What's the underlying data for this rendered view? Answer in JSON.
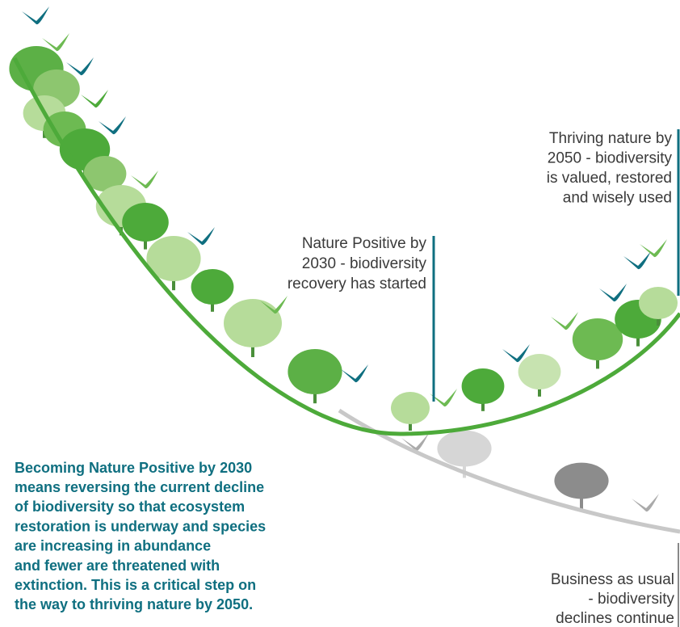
{
  "annotations": [
    {
      "lines": [
        "Thriving nature by",
        "2050 - biodiversity",
        "is valued, restored",
        "and wisely used"
      ]
    },
    {
      "lines": [
        "Nature Positive by",
        "2030 - biodiversity",
        "recovery has started"
      ]
    },
    {
      "lines": [
        "Business as usual",
        "- biodiversity",
        "declines continue"
      ]
    }
  ],
  "description": {
    "lines": [
      "Becoming Nature Positive by 2030",
      "means reversing the current decline",
      "of biodiversity so that ecosystem",
      "restoration is underway and species",
      "are increasing in abundance",
      "and fewer are threatened with",
      "extinction. This is a critical step on",
      "the way to thriving nature by 2050."
    ]
  }
}
